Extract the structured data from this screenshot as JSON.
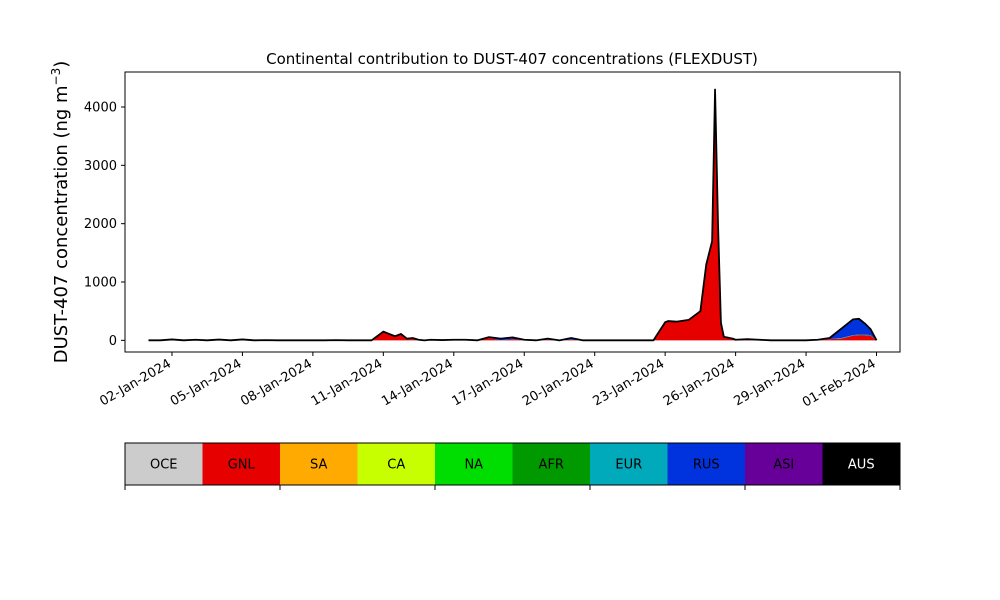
{
  "chart_data": {
    "type": "area",
    "stacked": true,
    "title": "Continental contribution to DUST-407 concentrations (FLEXDUST)",
    "ylabel_main": "DUST-407 concentration (ng m",
    "ylabel_sup": "−3",
    "ylabel_close": ")",
    "xlabel": "",
    "xlim": [
      "2023-12-31",
      "2024-02-02"
    ],
    "ylim": [
      -200,
      4600
    ],
    "y_ticks": [
      0,
      1000,
      2000,
      3000,
      4000
    ],
    "y_tick_labels": [
      "0",
      "1000",
      "2000",
      "3000",
      "4000"
    ],
    "x_ticks": [
      "2024-01-02",
      "2024-01-05",
      "2024-01-08",
      "2024-01-11",
      "2024-01-14",
      "2024-01-17",
      "2024-01-20",
      "2024-01-23",
      "2024-01-26",
      "2024-01-29",
      "2024-02-01"
    ],
    "x_tick_labels": [
      "02-Jan-2024",
      "05-Jan-2024",
      "08-Jan-2024",
      "11-Jan-2024",
      "14-Jan-2024",
      "17-Jan-2024",
      "20-Jan-2024",
      "23-Jan-2024",
      "26-Jan-2024",
      "29-Jan-2024",
      "01-Feb-2024"
    ],
    "grid": false,
    "x": [
      "2024-01-01T00:00",
      "2024-01-01T12:00",
      "2024-01-02T00:00",
      "2024-01-02T12:00",
      "2024-01-03T00:00",
      "2024-01-03T12:00",
      "2024-01-04T00:00",
      "2024-01-04T12:00",
      "2024-01-05T00:00",
      "2024-01-05T12:00",
      "2024-01-06T00:00",
      "2024-01-06T12:00",
      "2024-01-07T00:00",
      "2024-01-07T12:00",
      "2024-01-08T00:00",
      "2024-01-08T12:00",
      "2024-01-09T00:00",
      "2024-01-09T12:00",
      "2024-01-10T00:00",
      "2024-01-10T12:00",
      "2024-01-11T00:00",
      "2024-01-11T06:00",
      "2024-01-11T12:00",
      "2024-01-11T18:00",
      "2024-01-12T00:00",
      "2024-01-12T06:00",
      "2024-01-12T12:00",
      "2024-01-12T18:00",
      "2024-01-13T00:00",
      "2024-01-13T12:00",
      "2024-01-14T00:00",
      "2024-01-14T12:00",
      "2024-01-15T00:00",
      "2024-01-15T12:00",
      "2024-01-16T00:00",
      "2024-01-16T12:00",
      "2024-01-17T00:00",
      "2024-01-17T12:00",
      "2024-01-18T00:00",
      "2024-01-18T12:00",
      "2024-01-19T00:00",
      "2024-01-19T12:00",
      "2024-01-20T00:00",
      "2024-01-20T12:00",
      "2024-01-21T00:00",
      "2024-01-21T12:00",
      "2024-01-22T00:00",
      "2024-01-22T12:00",
      "2024-01-23T00:00",
      "2024-01-23T03:00",
      "2024-01-23T12:00",
      "2024-01-24T00:00",
      "2024-01-24T12:00",
      "2024-01-24T18:00",
      "2024-01-25T00:00",
      "2024-01-25T03:00",
      "2024-01-25T06:00",
      "2024-01-25T09:00",
      "2024-01-25T12:00",
      "2024-01-25T15:00",
      "2024-01-25T18:00",
      "2024-01-25T21:00",
      "2024-01-26T00:00",
      "2024-01-26T12:00",
      "2024-01-27T00:00",
      "2024-01-27T12:00",
      "2024-01-28T00:00",
      "2024-01-28T12:00",
      "2024-01-29T00:00",
      "2024-01-29T12:00",
      "2024-01-30T00:00",
      "2024-01-30T12:00",
      "2024-01-31T00:00",
      "2024-01-31T06:00",
      "2024-01-31T12:00",
      "2024-01-31T18:00",
      "2024-02-01T00:00"
    ],
    "series": [
      {
        "name": "OCE",
        "color": "#cccccc",
        "values": [
          0,
          0,
          0,
          0,
          0,
          0,
          0,
          0,
          0,
          0,
          0,
          0,
          0,
          0,
          0,
          0,
          0,
          0,
          0,
          0,
          0,
          0,
          0,
          0,
          0,
          0,
          0,
          0,
          0,
          0,
          0,
          0,
          0,
          0,
          0,
          0,
          0,
          0,
          0,
          0,
          0,
          0,
          0,
          0,
          0,
          0,
          0,
          0,
          0,
          0,
          0,
          0,
          0,
          0,
          0,
          0,
          0,
          0,
          0,
          0,
          0,
          0,
          0,
          0,
          0,
          0,
          0,
          0,
          0,
          0,
          0,
          0,
          0,
          0,
          0,
          0,
          0
        ]
      },
      {
        "name": "GNL",
        "color": "#e60000",
        "values": [
          0,
          0,
          5,
          0,
          5,
          0,
          3,
          0,
          5,
          0,
          3,
          0,
          0,
          0,
          0,
          0,
          3,
          0,
          0,
          0,
          150,
          110,
          70,
          110,
          30,
          40,
          10,
          0,
          10,
          0,
          10,
          10,
          0,
          40,
          0,
          20,
          0,
          0,
          10,
          0,
          10,
          0,
          0,
          0,
          0,
          0,
          0,
          0,
          310,
          330,
          320,
          350,
          500,
          1300,
          1700,
          4300,
          2000,
          300,
          60,
          50,
          40,
          30,
          10,
          20,
          10,
          0,
          0,
          0,
          0,
          0,
          20,
          30,
          80,
          90,
          90,
          80,
          0
        ]
      },
      {
        "name": "SA",
        "color": "#ffaa00",
        "values": [
          0,
          0,
          0,
          0,
          0,
          0,
          0,
          0,
          0,
          0,
          0,
          0,
          0,
          0,
          0,
          0,
          0,
          0,
          0,
          0,
          0,
          0,
          0,
          0,
          0,
          0,
          0,
          0,
          0,
          0,
          0,
          0,
          0,
          0,
          0,
          0,
          0,
          0,
          0,
          0,
          0,
          0,
          0,
          0,
          0,
          0,
          0,
          0,
          0,
          0,
          0,
          0,
          0,
          0,
          0,
          0,
          0,
          0,
          0,
          0,
          0,
          0,
          0,
          0,
          0,
          0,
          0,
          0,
          0,
          0,
          0,
          0,
          0,
          0,
          0,
          0,
          0
        ]
      },
      {
        "name": "CA",
        "color": "#c8ff00",
        "values": [
          0,
          0,
          0,
          0,
          0,
          0,
          0,
          0,
          0,
          0,
          0,
          0,
          0,
          0,
          0,
          0,
          0,
          0,
          0,
          0,
          0,
          0,
          0,
          0,
          0,
          0,
          0,
          0,
          0,
          0,
          0,
          0,
          0,
          0,
          0,
          0,
          0,
          0,
          0,
          0,
          0,
          0,
          0,
          0,
          0,
          0,
          0,
          0,
          0,
          0,
          0,
          0,
          0,
          0,
          0,
          0,
          0,
          0,
          0,
          0,
          0,
          0,
          0,
          0,
          0,
          0,
          0,
          0,
          0,
          0,
          0,
          0,
          0,
          0,
          0,
          0,
          0
        ]
      },
      {
        "name": "NA",
        "color": "#00dd00",
        "values": [
          0,
          0,
          0,
          0,
          0,
          0,
          0,
          0,
          0,
          0,
          0,
          0,
          0,
          0,
          0,
          0,
          0,
          0,
          0,
          0,
          0,
          0,
          0,
          0,
          0,
          0,
          0,
          0,
          0,
          5,
          0,
          0,
          0,
          0,
          0,
          0,
          0,
          0,
          0,
          0,
          0,
          0,
          0,
          0,
          0,
          0,
          0,
          0,
          0,
          0,
          0,
          0,
          0,
          0,
          0,
          0,
          0,
          0,
          0,
          0,
          0,
          0,
          0,
          0,
          0,
          0,
          0,
          0,
          0,
          0,
          0,
          0,
          0,
          0,
          0,
          0,
          0
        ]
      },
      {
        "name": "AFR",
        "color": "#009900",
        "values": [
          0,
          0,
          0,
          0,
          0,
          0,
          0,
          0,
          0,
          0,
          0,
          0,
          0,
          0,
          0,
          0,
          0,
          0,
          0,
          0,
          0,
          0,
          0,
          0,
          0,
          0,
          0,
          0,
          0,
          0,
          0,
          0,
          0,
          0,
          0,
          0,
          0,
          0,
          0,
          0,
          0,
          0,
          0,
          0,
          0,
          0,
          0,
          0,
          0,
          0,
          0,
          0,
          0,
          0,
          0,
          0,
          0,
          0,
          0,
          0,
          0,
          0,
          0,
          0,
          0,
          0,
          0,
          0,
          0,
          0,
          0,
          0,
          0,
          0,
          0,
          0,
          0
        ]
      },
      {
        "name": "EUR",
        "color": "#00aabb",
        "values": [
          0,
          0,
          5,
          0,
          0,
          0,
          0,
          0,
          0,
          0,
          0,
          0,
          0,
          0,
          0,
          0,
          0,
          0,
          0,
          0,
          0,
          0,
          0,
          0,
          0,
          0,
          0,
          0,
          0,
          0,
          0,
          0,
          0,
          0,
          0,
          0,
          0,
          0,
          0,
          0,
          0,
          0,
          0,
          0,
          0,
          0,
          0,
          0,
          0,
          0,
          0,
          0,
          0,
          0,
          0,
          0,
          0,
          0,
          0,
          0,
          0,
          0,
          0,
          0,
          0,
          0,
          0,
          0,
          0,
          0,
          0,
          10,
          10,
          10,
          10,
          10,
          0
        ]
      },
      {
        "name": "RUS",
        "color": "#0033dd",
        "values": [
          0,
          0,
          5,
          0,
          0,
          0,
          5,
          0,
          5,
          0,
          0,
          0,
          0,
          0,
          0,
          0,
          0,
          0,
          0,
          0,
          0,
          0,
          0,
          0,
          0,
          0,
          0,
          0,
          0,
          0,
          0,
          0,
          0,
          10,
          20,
          20,
          0,
          0,
          10,
          0,
          20,
          0,
          0,
          0,
          0,
          0,
          0,
          0,
          0,
          0,
          0,
          0,
          0,
          0,
          0,
          0,
          0,
          0,
          0,
          0,
          0,
          0,
          0,
          0,
          0,
          0,
          0,
          0,
          0,
          10,
          20,
          160,
          270,
          270,
          190,
          100,
          0
        ]
      },
      {
        "name": "ASI",
        "color": "#660099",
        "values": [
          0,
          0,
          0,
          0,
          5,
          0,
          5,
          0,
          5,
          0,
          0,
          0,
          0,
          0,
          0,
          0,
          0,
          0,
          0,
          0,
          0,
          0,
          0,
          0,
          0,
          0,
          0,
          0,
          0,
          0,
          0,
          0,
          0,
          5,
          10,
          10,
          10,
          0,
          10,
          0,
          10,
          0,
          0,
          0,
          0,
          0,
          0,
          0,
          0,
          0,
          0,
          0,
          0,
          0,
          0,
          0,
          0,
          0,
          0,
          0,
          0,
          0,
          0,
          0,
          0,
          0,
          0,
          0,
          0,
          0,
          0,
          0,
          0,
          0,
          0,
          0,
          0
        ]
      },
      {
        "name": "AUS",
        "color": "#000000",
        "values": [
          0,
          0,
          0,
          0,
          0,
          0,
          0,
          0,
          0,
          0,
          0,
          0,
          0,
          0,
          0,
          0,
          0,
          0,
          0,
          0,
          0,
          0,
          0,
          0,
          0,
          0,
          0,
          0,
          0,
          0,
          0,
          0,
          0,
          0,
          0,
          0,
          0,
          0,
          0,
          0,
          0,
          0,
          0,
          0,
          0,
          0,
          0,
          0,
          0,
          0,
          0,
          0,
          0,
          0,
          0,
          0,
          0,
          0,
          0,
          0,
          0,
          0,
          0,
          0,
          0,
          0,
          0,
          0,
          0,
          0,
          0,
          0,
          0,
          0,
          0,
          0,
          0
        ]
      }
    ],
    "legend": {
      "placement": "bottom",
      "entries": [
        {
          "label": "OCE",
          "color": "#cccccc",
          "text_color": "#000000"
        },
        {
          "label": "GNL",
          "color": "#e60000",
          "text_color": "#000000"
        },
        {
          "label": "SA",
          "color": "#ffaa00",
          "text_color": "#000000"
        },
        {
          "label": "CA",
          "color": "#c8ff00",
          "text_color": "#000000"
        },
        {
          "label": "NA",
          "color": "#00dd00",
          "text_color": "#000000"
        },
        {
          "label": "AFR",
          "color": "#009900",
          "text_color": "#000000"
        },
        {
          "label": "EUR",
          "color": "#00aabb",
          "text_color": "#000000"
        },
        {
          "label": "RUS",
          "color": "#0033dd",
          "text_color": "#000000"
        },
        {
          "label": "ASI",
          "color": "#660099",
          "text_color": "#000000"
        },
        {
          "label": "AUS",
          "color": "#000000",
          "text_color": "#ffffff"
        }
      ]
    }
  }
}
